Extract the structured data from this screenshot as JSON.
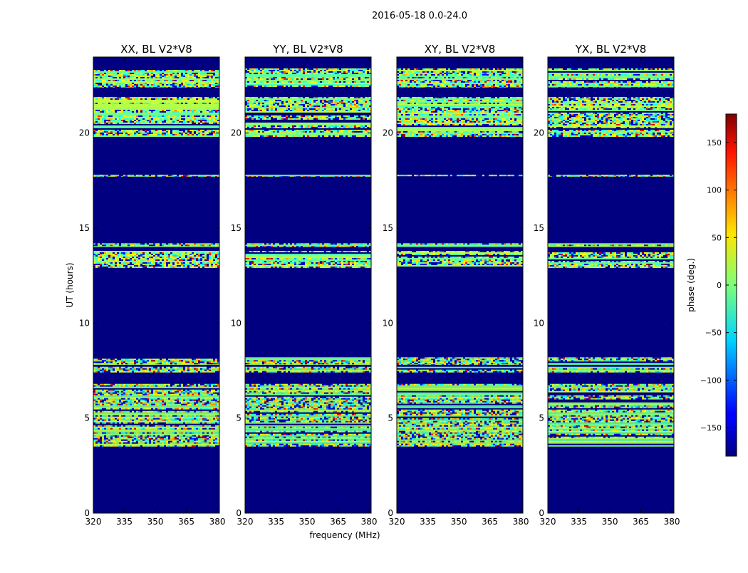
{
  "figure_title": "2016-05-18 0.0-24.0",
  "chart_data": {
    "type": "heatmap",
    "title": "2016-05-18 0.0-24.0",
    "xlabel": "frequency (MHz)",
    "ylabel": "UT (hours)",
    "xlim": [
      320,
      381
    ],
    "ylim": [
      0,
      24
    ],
    "xticks": [
      320,
      335,
      350,
      365,
      380
    ],
    "yticks": [
      0,
      5,
      10,
      15,
      20
    ],
    "panels": [
      {
        "title": "XX, BL V2*V8",
        "polarization": "XX"
      },
      {
        "title": "YY, BL V2*V8",
        "polarization": "YY"
      },
      {
        "title": "XY, BL V2*V8",
        "polarization": "XY"
      },
      {
        "title": "YX, BL V2*V8",
        "polarization": "YX"
      }
    ],
    "masked_value": -180,
    "data_bands_ut_hours": [
      {
        "start": 3.5,
        "end": 6.8
      },
      {
        "start": 7.4,
        "end": 7.7
      },
      {
        "start": 7.8,
        "end": 8.2
      },
      {
        "start": 12.9,
        "end": 13.8
      },
      {
        "start": 14.0,
        "end": 14.2
      },
      {
        "start": 17.7,
        "end": 17.8
      },
      {
        "start": 19.8,
        "end": 21.9
      },
      {
        "start": 22.4,
        "end": 23.4
      }
    ],
    "colorbar": {
      "label": "phase (deg.)",
      "range": [
        -180,
        180
      ],
      "ticks": [
        -150,
        -100,
        -50,
        0,
        50,
        100,
        150
      ],
      "tick_labels": [
        "−150",
        "−100",
        "−50",
        "0",
        "50",
        "100",
        "150"
      ],
      "colormap": "jet"
    }
  }
}
